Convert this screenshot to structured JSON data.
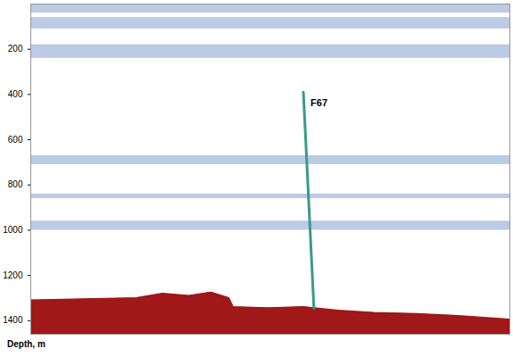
{
  "chart_data": {
    "type": "echogram",
    "y_label": "Depth, m",
    "ylim": [
      0,
      1460
    ],
    "yticks": [
      200,
      400,
      600,
      800,
      1000,
      1200,
      1400
    ],
    "xlim": [
      0,
      100
    ],
    "tick_labels": "y",
    "color": "#1f4fa8",
    "scattering_layers": [
      {
        "top": 0,
        "bottom": 40
      },
      {
        "top": 60,
        "bottom": 110
      },
      {
        "top": 180,
        "bottom": 240
      },
      {
        "top": 670,
        "bottom": 710
      },
      {
        "top": 840,
        "bottom": 860
      },
      {
        "top": 960,
        "bottom": 1000
      }
    ],
    "seabed": {
      "color": "#a01818",
      "x": [
        0,
        22,
        27.5,
        33,
        37.6,
        41.3,
        42.2,
        49.5,
        56.9,
        64.2,
        71.6,
        80.7,
        89.9,
        100
      ],
      "depth": [
        1310,
        1300,
        1280,
        1290,
        1275,
        1300,
        1340,
        1345,
        1340,
        1355,
        1365,
        1370,
        1380,
        1395
      ]
    },
    "track": {
      "name": "F67",
      "color": "#3a9a8c",
      "x": [
        56.9,
        59.1
      ],
      "depth": [
        390,
        1345
      ]
    }
  }
}
